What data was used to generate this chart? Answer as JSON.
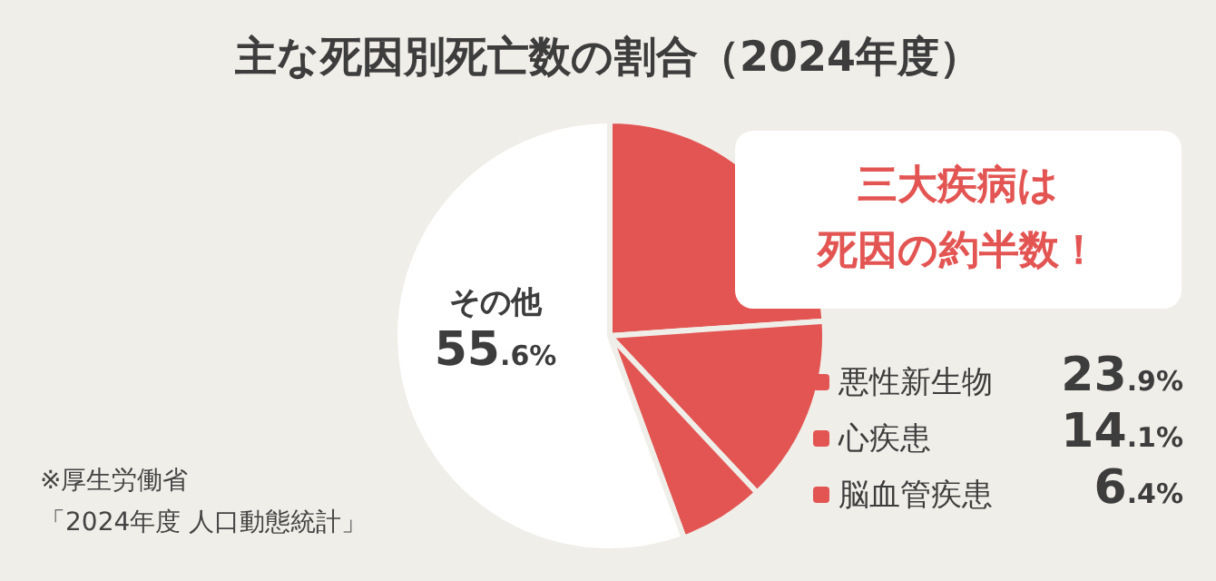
{
  "chart_data": {
    "type": "pie",
    "title": "主な死因別死亡数の割合（2024年度）",
    "categories": [
      "悪性新生物",
      "心疾患",
      "脳血管疾患",
      "その他"
    ],
    "values": [
      23.9,
      14.1,
      6.4,
      55.6
    ],
    "colors": [
      "#e35553",
      "#e35553",
      "#e35553",
      "#ffffff"
    ],
    "value_labels": [
      "23.9%",
      "14.1%",
      "6.4%",
      "55.6%"
    ],
    "annotations": [
      "三大疾病は",
      "死因の約半数！",
      "※厚生労働省",
      "「2024年度 人口動態統計」"
    ],
    "legend": "right"
  }
}
